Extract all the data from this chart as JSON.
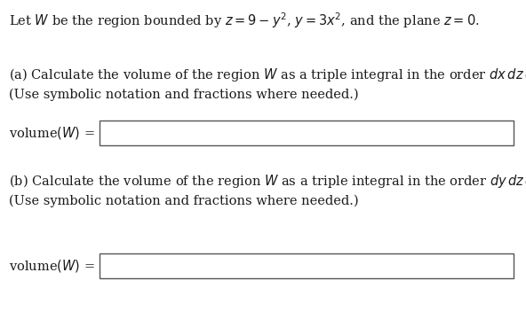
{
  "bg_color": "#ffffff",
  "text_color": "#1a1a1a",
  "title_line": "Let $W$ be the region bounded by $z = 9 - y^2$, $y = 3x^2$, and the plane $z = 0$.",
  "part_a_line1": "(a) Calculate the volume of the region $W$ as a triple integral in the order $dx\\,dz\\,dy$.",
  "part_a_line2": "(Use symbolic notation and fractions where needed.)",
  "label_a": "volume$(W)$ =",
  "part_b_line1": "(b) Calculate the volume of the region $W$ as a triple integral in the order $dy\\,dz\\,dx$.",
  "part_b_line2": "(Use symbolic notation and fractions where needed.)",
  "label_b": "volume$(W)$ =",
  "font_size": 10.5
}
